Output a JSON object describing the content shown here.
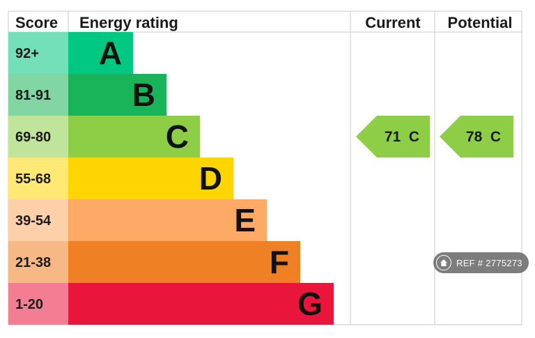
{
  "chart_data": {
    "type": "bar",
    "headers": {
      "score": "Score",
      "rating": "Energy rating",
      "current": "Current",
      "potential": "Potential"
    },
    "bands": [
      {
        "range": "92+",
        "letter": "A",
        "color": "#00c781"
      },
      {
        "range": "81-91",
        "letter": "B",
        "color": "#19b459"
      },
      {
        "range": "69-80",
        "letter": "C",
        "color": "#8dce46"
      },
      {
        "range": "55-68",
        "letter": "D",
        "color": "#ffd500"
      },
      {
        "range": "39-54",
        "letter": "E",
        "color": "#fcaa65"
      },
      {
        "range": "21-38",
        "letter": "F",
        "color": "#ef8023"
      },
      {
        "range": "1-20",
        "letter": "G",
        "color": "#e9153b"
      }
    ],
    "current": {
      "value": 71,
      "letter": "C",
      "label": "71  C",
      "color": "#8dce46"
    },
    "potential": {
      "value": 78,
      "letter": "C",
      "label": "78  C",
      "color": "#8dce46"
    }
  },
  "badge": {
    "icon": "home-icon",
    "text": "REF # 2775273"
  }
}
